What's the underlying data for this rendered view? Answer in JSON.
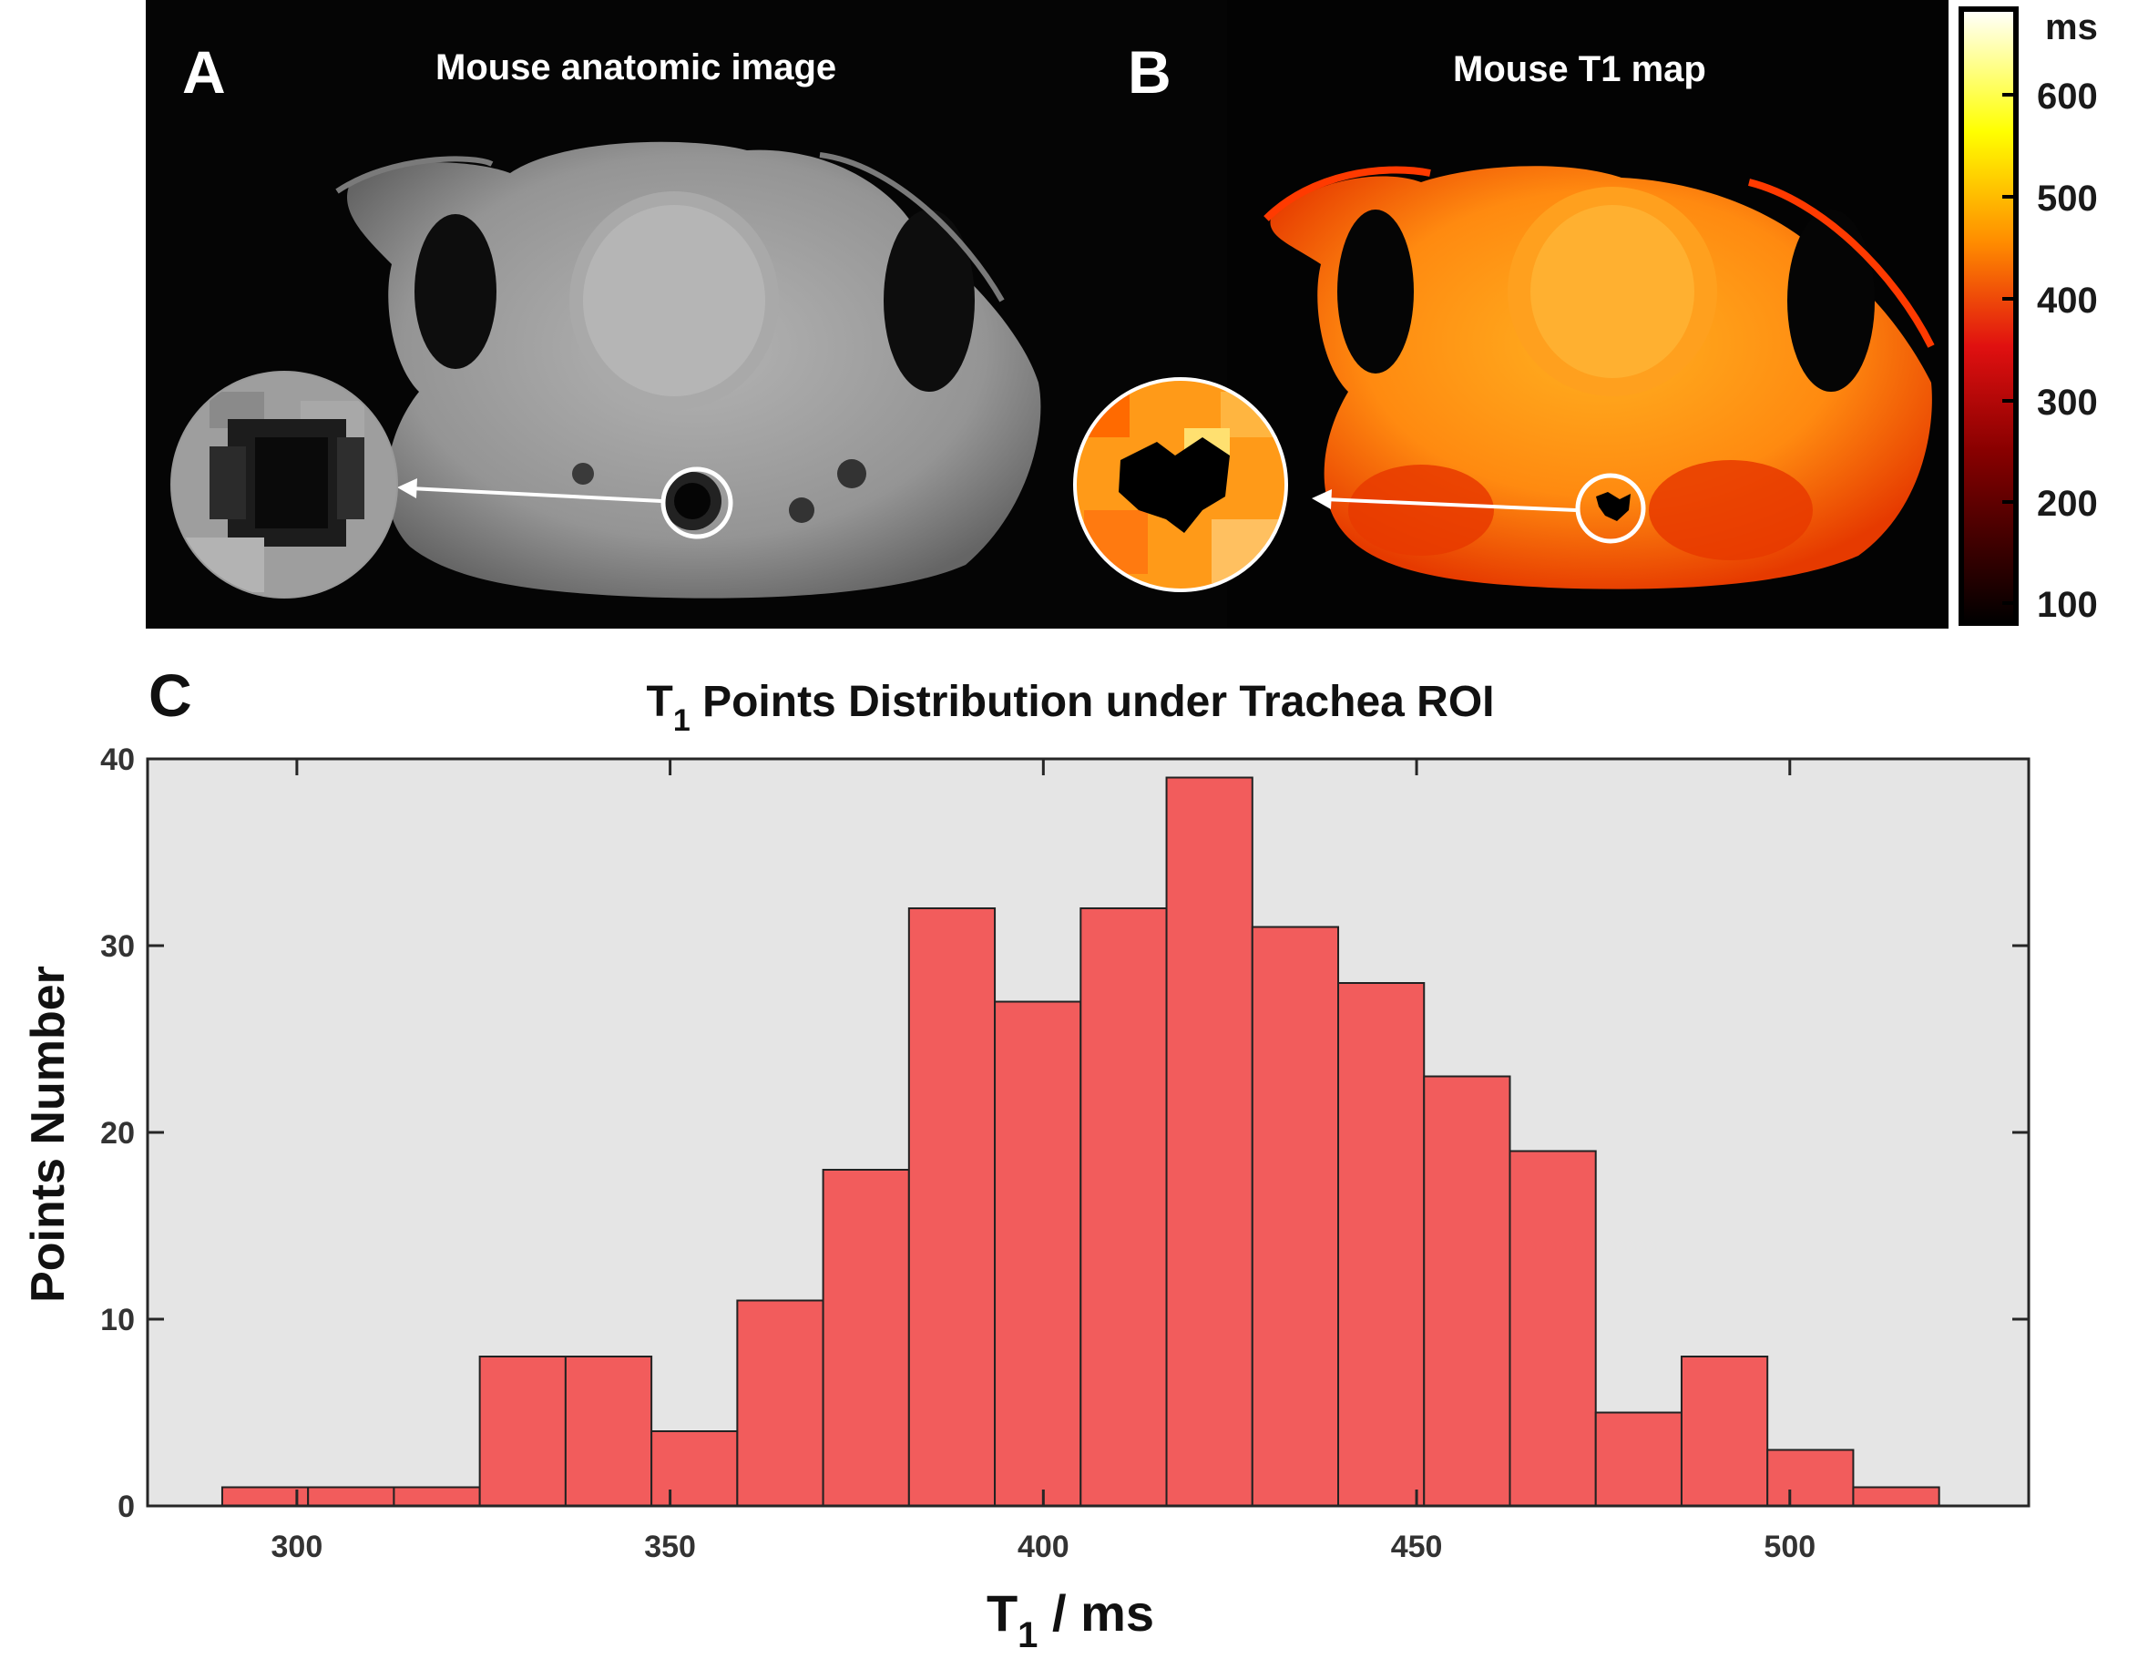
{
  "panel_a": {
    "letter": "A",
    "title": "Mouse anatomic image"
  },
  "panel_b": {
    "letter": "B",
    "title": "Mouse T1 map"
  },
  "colorbar": {
    "unit": "ms",
    "ticks": [
      "600",
      "500",
      "400",
      "300",
      "200",
      "100"
    ],
    "colors": [
      "#ffffff",
      "#ffff00",
      "#ff8c00",
      "#cc0000",
      "#000000"
    ]
  },
  "panel_c": {
    "letter": "C"
  },
  "colors": {
    "bar_fill": "#f25c5c",
    "bar_stroke": "#222222",
    "plot_bg": "#e5e5e5",
    "image_bg": "#000000"
  },
  "chart_data": {
    "type": "bar",
    "title": "T1 Points Distribution under Trachea ROI",
    "title_main": "T",
    "title_sub": "1",
    "title_rest": " Points Distribution under Trachea ROI",
    "xlabel": "T1 / ms",
    "xlabel_main": "T",
    "xlabel_sub": "1",
    "xlabel_rest": " / ms",
    "ylabel": "Points Number",
    "xlim": [
      280,
      532
    ],
    "ylim": [
      0,
      40
    ],
    "xticks": [
      300,
      350,
      400,
      450,
      500
    ],
    "yticks": [
      0,
      10,
      20,
      30,
      40
    ],
    "bin_edges": [
      290,
      301.5,
      313,
      324.5,
      336,
      347.5,
      359,
      370.5,
      382,
      393.5,
      405,
      416.5,
      428,
      439.5,
      451,
      462.5,
      474,
      485.5,
      497,
      508.5,
      520
    ],
    "values": [
      1,
      1,
      1,
      8,
      8,
      4,
      11,
      18,
      32,
      27,
      32,
      39,
      31,
      28,
      23,
      19,
      5,
      8,
      3,
      1
    ],
    "grid": false,
    "legend": "none"
  }
}
